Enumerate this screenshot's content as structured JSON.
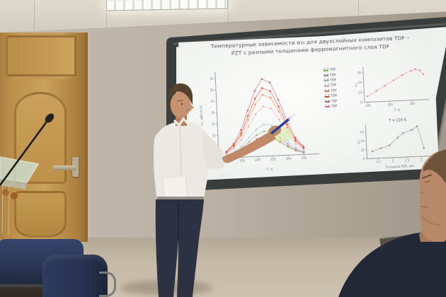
{
  "slide": {
    "title": "Температурные зависимости α₃₁ для двухслойных композитов TDF – PZT с разными толщинами ферромагнитного слоя TDF"
  },
  "chart_data": [
    {
      "type": "scatter",
      "title": "",
      "x": [
        100,
        125,
        150,
        175,
        200,
        225,
        250,
        275,
        300,
        325,
        350
      ],
      "series": [
        {
          "name": "0.3 TDF",
          "color": "#7cc242",
          "values": [
            0.6,
            1.4,
            2.8,
            4.8,
            6.8,
            8,
            7.6,
            5.8,
            3.6,
            1.8,
            0.8
          ]
        },
        {
          "name": "0.6 TDF",
          "color": "#9aa08b",
          "values": [
            0.9,
            2.0,
            3.9,
            6.6,
            9.4,
            11,
            10.5,
            7.9,
            5.0,
            2.4,
            1.1
          ]
        },
        {
          "name": "0.9 TDF",
          "color": "#a9c7e6",
          "values": [
            1.1,
            2.5,
            4.9,
            8.4,
            11.9,
            14,
            13.3,
            10.1,
            6.3,
            3.1,
            1.4
          ]
        },
        {
          "name": "1.2 TDF",
          "color": "#f2a0c0",
          "values": [
            1.8,
            4.0,
            7.7,
            13.2,
            18.7,
            22,
            20.9,
            15.8,
            9.9,
            4.8,
            2.2
          ]
        },
        {
          "name": "1.4 TDF",
          "color": "#e8833e",
          "values": [
            2.2,
            4.9,
            9.5,
            16.2,
            23.0,
            27,
            25.7,
            19.4,
            12.2,
            5.9,
            2.7
          ]
        },
        {
          "name": "1.7 TDF",
          "color": "#d93a2b",
          "values": [
            2.4,
            5.4,
            10.5,
            18.0,
            25.5,
            30,
            28.5,
            21.6,
            13.5,
            6.6,
            3.0
          ]
        },
        {
          "name": "1.9 TDF",
          "color": "#c2566f",
          "values": [
            2.7,
            6.1,
            11.9,
            20.4,
            28.9,
            34,
            32.3,
            24.5,
            15.3,
            7.5,
            3.4
          ]
        },
        {
          "name": "2.1 TDF",
          "color": "#ee5f98",
          "values": [
            0.7,
            1.6,
            3.2,
            5.4,
            7.7,
            9,
            8.6,
            6.5,
            4.1,
            2.0,
            0.9
          ]
        }
      ],
      "xlabel": "Т, К",
      "ylabel": "α₃₁, мВ/(см·Э)",
      "xlim": [
        75,
        400
      ],
      "ylim": [
        0,
        38
      ],
      "xticks": [
        100,
        150,
        200,
        250,
        300,
        350
      ],
      "yticks": [
        0,
        5,
        10,
        15,
        20,
        25,
        30,
        35
      ],
      "legend_position": "right"
    },
    {
      "type": "scatter",
      "x": [
        100,
        140,
        180,
        220,
        260,
        300,
        320,
        340,
        355
      ],
      "series": [
        {
          "name": "α₃₁(T)",
          "color": "#e87fa8",
          "values": [
            6,
            11,
            16,
            21,
            26,
            30,
            31.5,
            30,
            26
          ]
        }
      ],
      "xlabel": "Т, К",
      "ylabel": "α₃₁",
      "xlim": [
        85,
        375
      ],
      "ylim": [
        0,
        36
      ],
      "xticks": [
        100,
        200,
        300
      ],
      "yticks": [
        0,
        10,
        20,
        30
      ]
    },
    {
      "type": "line",
      "title": "T = 220 K",
      "x": [
        0.3,
        0.6,
        0.9,
        1.2,
        1.4,
        1.7,
        1.9,
        2.1
      ],
      "series": [
        {
          "name": "T = 220 K",
          "color": "#8a8a92",
          "values": [
            8,
            11,
            14,
            22,
            27,
            30,
            34,
            9
          ]
        }
      ],
      "xlabel": "Толщина TDF, мм",
      "ylabel": "α₃₁",
      "xlim": [
        0.1,
        2.35
      ],
      "ylim": [
        0,
        38
      ],
      "xticks": [
        0.5,
        1.0,
        1.5,
        2.0
      ],
      "yticks": [
        0,
        10,
        20,
        30
      ]
    }
  ],
  "palette": {
    "wall": "#b7ae9f",
    "ceiling": "#d7d1c4",
    "door_wood": "#b98c4c",
    "board_frame": "#393d3c",
    "screen_white": "#f1f3f0",
    "chair_blue": "#2a3550",
    "presenter_shirt": "#ece9e4",
    "presenter_jeans": "#2c3242",
    "skin_presenter": "#c79272",
    "skin_audience": "#b8886a",
    "pen_blue": "#2a3f8f",
    "pointer_glow": "#d8e8a8",
    "floor": "#c0b4a2"
  }
}
